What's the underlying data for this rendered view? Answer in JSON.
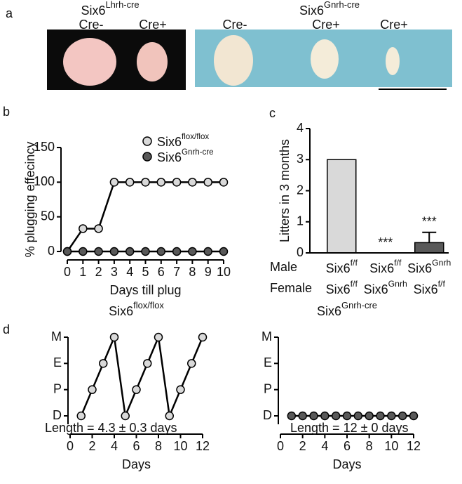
{
  "panel_a": {
    "panel_label": "a",
    "groups": [
      {
        "title": "Six6",
        "title_sup": "Lhrh-cre",
        "labels": [
          "Cre-",
          "Cre+"
        ]
      },
      {
        "title": "Six6",
        "title_sup": "Gnrh-cre",
        "labels": [
          "Cre-",
          "Cre+",
          "Cre+"
        ]
      }
    ]
  },
  "chart_data": [
    {
      "type": "line",
      "panel_label": "b",
      "xlabel": "Days till plug",
      "ylabel": "% plugging effecincy",
      "x": [
        0,
        1,
        2,
        3,
        4,
        5,
        6,
        7,
        8,
        9,
        10
      ],
      "xlim": [
        0,
        10
      ],
      "xticks": [
        0,
        1,
        2,
        3,
        4,
        5,
        6,
        7,
        8,
        9,
        10
      ],
      "ylim": [
        0,
        150
      ],
      "yticks": [
        0,
        50,
        100,
        150
      ],
      "series": [
        {
          "name": "Six6",
          "name_sup": "flox/flox",
          "color": "#d9d9d9",
          "values": [
            0,
            33,
            33,
            100,
            100,
            100,
            100,
            100,
            100,
            100,
            100
          ]
        },
        {
          "name": "Six6",
          "name_sup": "Gnrh-cre",
          "color": "#595959",
          "values": [
            0,
            0,
            0,
            0,
            0,
            0,
            0,
            0,
            0,
            0,
            0
          ]
        }
      ]
    },
    {
      "type": "bar",
      "panel_label": "c",
      "ylabel": "Litters in 3 months",
      "values": [
        3,
        0,
        0.33
      ],
      "errors": [
        null,
        null,
        0.33
      ],
      "colors": [
        "#d9d9d9",
        "#ffffff",
        "#595959"
      ],
      "significance": [
        null,
        "***",
        "***"
      ],
      "ylim": [
        0,
        4
      ],
      "yticks": [
        0,
        1,
        2,
        3,
        4
      ],
      "rows": [
        {
          "label": "Male",
          "cells": [
            {
              "text": "Six6",
              "sup": "f/f"
            },
            {
              "text": "Six6",
              "sup": "f/f"
            },
            {
              "text": "Six6",
              "sup": "Gnrh"
            }
          ]
        },
        {
          "label": "Female",
          "cells": [
            {
              "text": "Six6",
              "sup": "f/f"
            },
            {
              "text": "Six6",
              "sup": "Gnrh"
            },
            {
              "text": "Six6",
              "sup": "f/f"
            }
          ]
        }
      ]
    },
    {
      "type": "line",
      "panel_label": "d",
      "title": "Six6",
      "title_sup": "flox/flox",
      "xlabel": "Days",
      "annotation": "Length = 4.3 ± 0.3 days",
      "x": [
        1,
        2,
        3,
        4,
        5,
        6,
        7,
        8,
        9,
        10,
        11,
        12
      ],
      "xlim": [
        0,
        12
      ],
      "xticks": [
        0,
        2,
        4,
        6,
        8,
        10,
        12
      ],
      "ylim": [
        0,
        3
      ],
      "yticks": [
        {
          "value": 0,
          "label": "D"
        },
        {
          "value": 1,
          "label": "P"
        },
        {
          "value": 2,
          "label": "E"
        },
        {
          "value": 3,
          "label": "M"
        }
      ],
      "series": [
        {
          "color": "#d9d9d9",
          "values": [
            0,
            1,
            2,
            3,
            0,
            1,
            2,
            3,
            0,
            1,
            2,
            3
          ]
        }
      ]
    },
    {
      "type": "line",
      "title": "Six6",
      "title_sup": "Gnrh-cre",
      "xlabel": "Days",
      "annotation": "Length = 12 ± 0 days",
      "x": [
        1,
        2,
        3,
        4,
        5,
        6,
        7,
        8,
        9,
        10,
        11,
        12
      ],
      "xlim": [
        0,
        12
      ],
      "xticks": [
        0,
        2,
        4,
        6,
        8,
        10,
        12
      ],
      "ylim": [
        0,
        3
      ],
      "yticks": [
        {
          "value": 0,
          "label": "D"
        },
        {
          "value": 1,
          "label": "P"
        },
        {
          "value": 2,
          "label": "E"
        },
        {
          "value": 3,
          "label": "M"
        }
      ],
      "series": [
        {
          "color": "#595959",
          "values": [
            0,
            0,
            0,
            0,
            0,
            0,
            0,
            0,
            0,
            0,
            0,
            0
          ]
        }
      ]
    }
  ]
}
